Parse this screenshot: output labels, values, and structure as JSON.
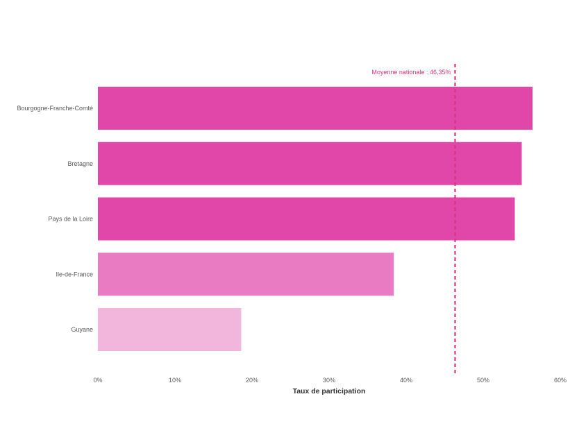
{
  "chart_data": {
    "type": "bar",
    "orientation": "horizontal",
    "title": "",
    "xlabel": "Taux de participation",
    "ylabel": "",
    "xlim": [
      0,
      60
    ],
    "xticks": [
      0,
      10,
      20,
      30,
      40,
      50,
      60
    ],
    "xtick_labels": [
      "0%",
      "10%",
      "20%",
      "30%",
      "40%",
      "50%",
      "60%"
    ],
    "grid": false,
    "categories": [
      "Bourgogne-Franche-Comté",
      "Bretagne",
      "Pays de la Loire",
      "Ile-de-France",
      "Guyane"
    ],
    "values": [
      56.4,
      55.0,
      54.1,
      38.4,
      18.6
    ],
    "colors": [
      "#e047a9",
      "#e047a9",
      "#e047a9",
      "#e87bc2",
      "#f2b6dc"
    ],
    "reference_line": {
      "value": 46.35,
      "label": "Moyenne nationale : 46,35%",
      "color": "#d6367f",
      "style": "dashed"
    }
  }
}
